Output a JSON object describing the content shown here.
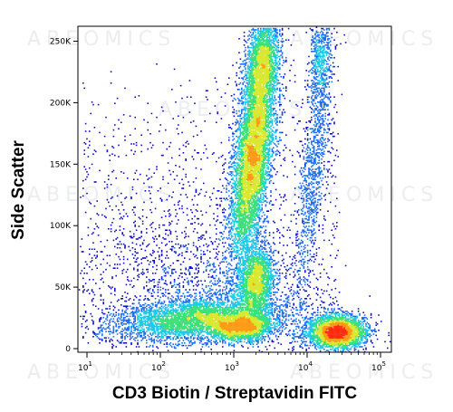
{
  "chart_data": {
    "type": "scatter",
    "subtype": "flow-cytometry-density-dot-plot",
    "xlabel": "CD3 Biotin / Streptavidin FITC",
    "ylabel": "Side Scatter",
    "x_scale": "log",
    "xlim": [
      10,
      100000
    ],
    "ylim": [
      0,
      262144
    ],
    "x_ticks": [
      {
        "value": 10,
        "base": "10",
        "exp": "1"
      },
      {
        "value": 100,
        "base": "10",
        "exp": "2"
      },
      {
        "value": 1000,
        "base": "10",
        "exp": "3"
      },
      {
        "value": 10000,
        "base": "10",
        "exp": "4"
      },
      {
        "value": 100000,
        "base": "10",
        "exp": "5"
      }
    ],
    "y_ticks": [
      {
        "value": 0,
        "label": "0"
      },
      {
        "value": 50000,
        "label": "50K"
      },
      {
        "value": 100000,
        "label": "100K"
      },
      {
        "value": 150000,
        "label": "150K"
      },
      {
        "value": 200000,
        "label": "200K"
      },
      {
        "value": 250000,
        "label": "250K"
      }
    ],
    "grid": false,
    "legend": "none",
    "color_scale": [
      "#1010c8",
      "#1e6ef0",
      "#1fc8e6",
      "#3ce07a",
      "#d8e830",
      "#ff9a14",
      "#ff2a10"
    ],
    "populations": [
      {
        "id": "cd3-neg-granulocytes",
        "x_center": 1800,
        "y_center": 160000,
        "y_spread": 50000,
        "density": "high"
      },
      {
        "id": "cd3-neg-monocytes",
        "x_center": 2000,
        "y_center": 55000,
        "y_spread": 15000,
        "density": "medium"
      },
      {
        "id": "cd3-neg-lymphocytes",
        "x_center": 300,
        "y_center": 25000,
        "y_spread": 10000,
        "density": "medium"
      },
      {
        "id": "cd3-pos-lymphocytes",
        "x_center": 25000,
        "y_center": 14000,
        "y_spread": 6000,
        "density": "highest"
      }
    ]
  },
  "watermark": {
    "text": "ABEOMICS",
    "color": "#c9ccd2"
  }
}
